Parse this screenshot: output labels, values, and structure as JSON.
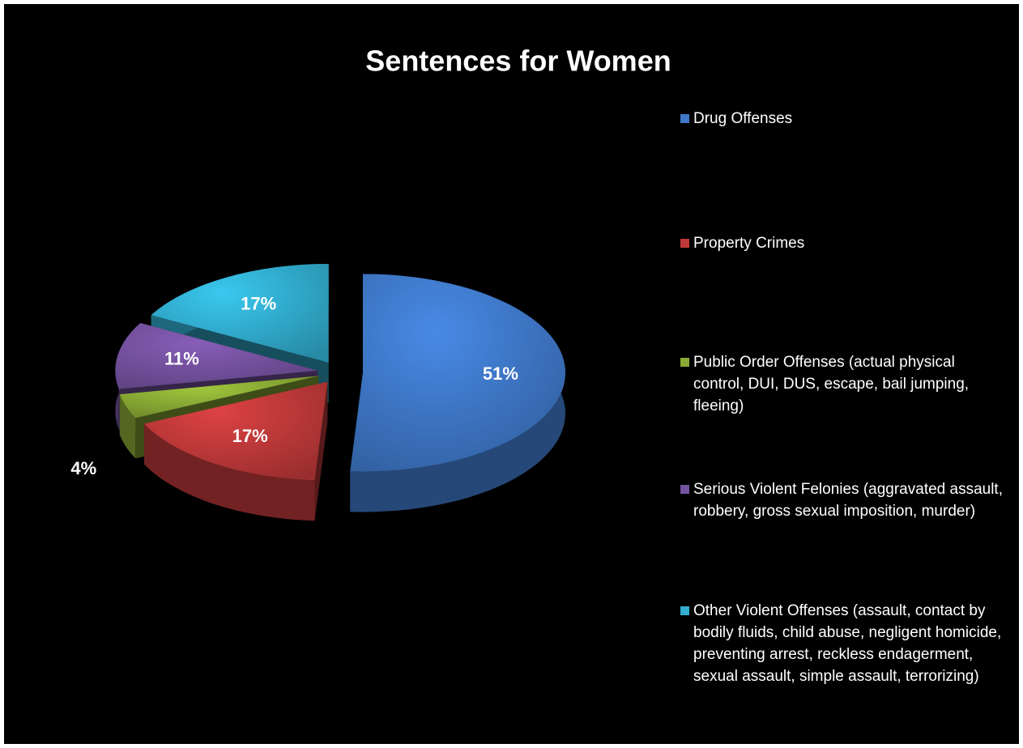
{
  "chart_data": {
    "type": "pie",
    "title": "Sentences for Women",
    "categories": [
      "Drug Offenses",
      "Property Crimes",
      "Public Order Offenses (actual physical control, DUI, DUS, escape, bail jumping, fleeing)",
      "Serious Violent Felonies (aggravated assault, robbery, gross sexual imposition, murder)",
      "Other Violent Offenses (assault, contact by bodily fluids, child abuse, negligent homicide, preventing arrest, reckless endagerment, sexual assault, simple assault, terrorizing)"
    ],
    "values": [
      51,
      17,
      4,
      11,
      17
    ],
    "value_labels": [
      "51%",
      "17%",
      "4%",
      "11%",
      "17%"
    ],
    "colors": [
      "#3f78c8",
      "#c0393a",
      "#8aab35",
      "#7552a0",
      "#32aed0"
    ],
    "legend": "right"
  }
}
